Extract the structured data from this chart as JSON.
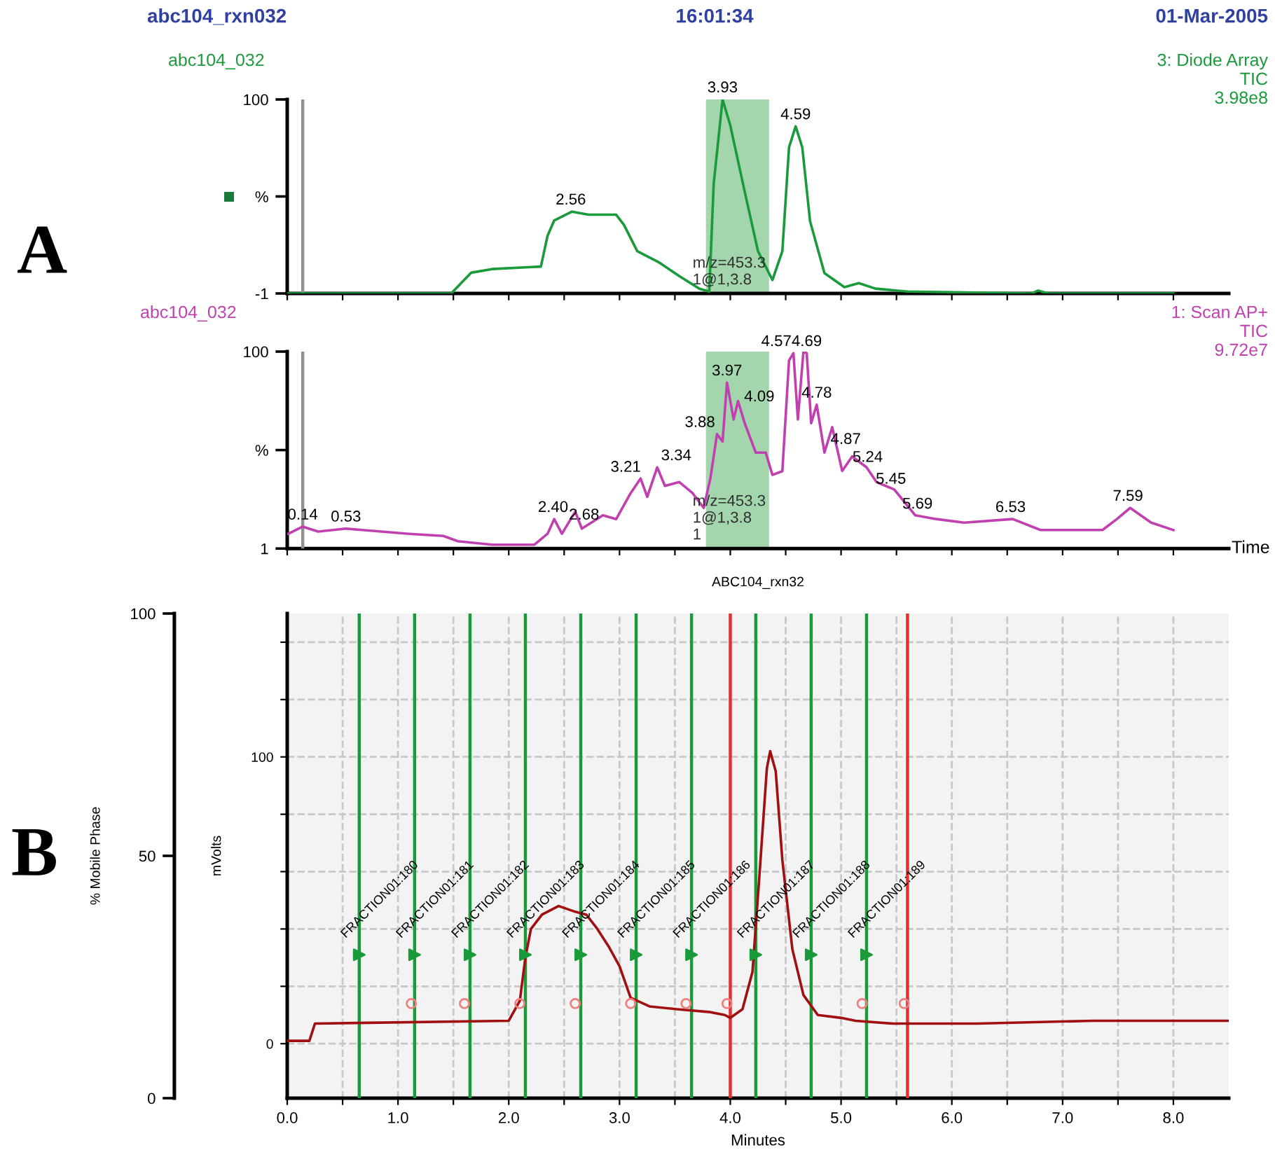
{
  "chart_data": [
    {
      "type": "line",
      "xlim": [
        0,
        8.5
      ],
      "ylim": [
        -1,
        100
      ],
      "tick_labels": "y",
      "xticks": [
        {
          "value": 0,
          "label": null
        },
        {
          "value": 0.5,
          "label": null
        },
        {
          "value": 1,
          "label": null
        },
        {
          "value": 1.5,
          "label": null
        },
        {
          "value": 2,
          "label": null
        },
        {
          "value": 2.5,
          "label": null
        },
        {
          "value": 3,
          "label": null
        },
        {
          "value": 3.5,
          "label": null
        },
        {
          "value": 4,
          "label": null
        },
        {
          "value": 4.5,
          "label": null
        },
        {
          "value": 5,
          "label": null
        },
        {
          "value": 5.5,
          "label": null
        },
        {
          "value": 6,
          "label": null
        },
        {
          "value": 6.5,
          "label": null
        },
        {
          "value": 7,
          "label": null
        },
        {
          "value": 7.5,
          "label": null
        },
        {
          "value": 8,
          "label": null
        }
      ],
      "yticks": [
        -1,
        {
          "value": 49.5,
          "label": "%"
        },
        100
      ],
      "series": [
        {
          "color": "#1a9a3a",
          "x": [
            0.01,
            1.48,
            1.66,
            1.85,
            2.29,
            2.35,
            2.41,
            2.57,
            2.72,
            2.97,
            3.04,
            3.16,
            3.35,
            3.54,
            3.72,
            3.81,
            3.85,
            3.93,
            4.0,
            4.13,
            4.25,
            4.38,
            4.47,
            4.53,
            4.59,
            4.65,
            4.72,
            4.85,
            5.03,
            5.16,
            5.31,
            5.6,
            6.72,
            6.78,
            6.87,
            8.0
          ],
          "values": [
            -1,
            -1,
            9.8,
            11.7,
            13,
            29,
            37,
            41.6,
            40,
            40,
            34.7,
            21,
            15.4,
            8,
            1.5,
            0,
            56,
            100,
            86.5,
            52,
            21,
            6,
            21,
            75,
            86,
            75,
            36.6,
            9.6,
            2.3,
            4.4,
            1.5,
            0,
            -1,
            0.5,
            -1,
            -1
          ]
        }
      ],
      "bands": [
        {
          "axis": "x",
          "from": 3.78,
          "to": 4.35,
          "color": "#7cc48a",
          "label": "m/z=453.3\n1@1,3.8"
        }
      ],
      "ref_lines": [
        {
          "axis": "x",
          "value": 0.14,
          "color": "#909090"
        }
      ],
      "annotations": [
        "A",
        "abc104_rxn032",
        "16:01:34",
        "01-Mar-2005",
        "abc104_032",
        "3: Diode Array\nTIC\n3.98e8",
        {
          "text": "2.56",
          "x": 2.56,
          "y": 41.6
        },
        {
          "text": "3.93",
          "x": 3.93,
          "y": 100
        },
        {
          "text": "4.59",
          "x": 4.59,
          "y": 86
        }
      ]
    },
    {
      "type": "line",
      "xlim": [
        0,
        8.5
      ],
      "ylim": [
        1,
        100
      ],
      "tick_labels": "y",
      "xlabel": "Time",
      "xticks": [
        {
          "value": 0,
          "label": null
        },
        {
          "value": 0.5,
          "label": null
        },
        {
          "value": 1,
          "label": null
        },
        {
          "value": 1.5,
          "label": null
        },
        {
          "value": 2,
          "label": null
        },
        {
          "value": 2.5,
          "label": null
        },
        {
          "value": 3,
          "label": null
        },
        {
          "value": 3.5,
          "label": null
        },
        {
          "value": 4,
          "label": null
        },
        {
          "value": 4.5,
          "label": null
        },
        {
          "value": 5,
          "label": null
        },
        {
          "value": 5.5,
          "label": null
        },
        {
          "value": 6,
          "label": null
        },
        {
          "value": 6.5,
          "label": null
        },
        {
          "value": 7,
          "label": null
        },
        {
          "value": 7.5,
          "label": null
        },
        {
          "value": 8,
          "label": null
        }
      ],
      "yticks": [
        1,
        {
          "value": 50.5,
          "label": "%"
        },
        100
      ],
      "series": [
        {
          "color": "#c040b0",
          "x": [
            0.01,
            0.14,
            0.28,
            0.53,
            1.1,
            1.41,
            1.54,
            1.85,
            2.23,
            2.35,
            2.41,
            2.48,
            2.6,
            2.66,
            2.85,
            2.97,
            3.1,
            3.19,
            3.25,
            3.34,
            3.41,
            3.54,
            3.66,
            3.76,
            3.82,
            3.88,
            3.93,
            3.97,
            4.03,
            4.07,
            4.13,
            4.23,
            4.32,
            4.38,
            4.47,
            4.53,
            4.57,
            4.61,
            4.66,
            4.69,
            4.73,
            4.78,
            4.85,
            4.92,
            5.01,
            5.1,
            5.23,
            5.32,
            5.48,
            5.67,
            5.86,
            6.11,
            6.55,
            6.8,
            7.36,
            7.49,
            7.61,
            7.8,
            8.0
          ],
          "values": [
            8.4,
            12,
            9.5,
            11,
            8.4,
            7.3,
            4.7,
            2.9,
            2.9,
            8.4,
            15.8,
            8.4,
            19.5,
            11,
            17.7,
            15.8,
            28.8,
            36.2,
            27,
            41.8,
            32.5,
            34.4,
            28.8,
            21.4,
            36.2,
            58.5,
            54.8,
            84.4,
            65.9,
            75.1,
            64,
            49.2,
            49.2,
            38,
            39.9,
            95.5,
            99.2,
            65.9,
            100,
            99.2,
            64,
            73.3,
            49.2,
            62,
            40,
            47.3,
            41.8,
            34.4,
            30.7,
            17.7,
            15.8,
            14,
            15.8,
            10.3,
            10.3,
            15.8,
            21.4,
            14,
            10.3
          ]
        }
      ],
      "bands": [
        {
          "axis": "x",
          "from": 3.78,
          "to": 4.35,
          "color": "#7cc48a",
          "label": "m/z=453.3\n1@1,3.8\n1"
        }
      ],
      "ref_lines": [
        {
          "axis": "x",
          "value": 0.14,
          "color": "#909090"
        }
      ],
      "annotations": [
        "abc104_032",
        "1: Scan AP+\nTIC\n9.72e7",
        {
          "text": "0.14",
          "x": 0.14,
          "y": 12
        },
        {
          "text": "0.53",
          "x": 0.53,
          "y": 11
        },
        {
          "text": "2.40",
          "x": 2.4,
          "y": 15.8
        },
        {
          "text": "2.68",
          "x": 2.68,
          "y": 12
        },
        {
          "text": "3.21",
          "x": 3.21,
          "y": 36
        },
        {
          "text": "3.34",
          "x": 3.34,
          "y": 41.8
        },
        {
          "text": "3.88",
          "x": 3.88,
          "y": 58.5
        },
        {
          "text": "3.97",
          "x": 3.97,
          "y": 84.4
        },
        {
          "text": "4.09",
          "x": 4.09,
          "y": 71.4
        },
        {
          "text": "4.57",
          "x": 4.57,
          "y": 99.2
        },
        {
          "text": "4.69",
          "x": 4.69,
          "y": 99.2
        },
        {
          "text": "4.78",
          "x": 4.78,
          "y": 73.3
        },
        {
          "text": "4.87",
          "x": 4.87,
          "y": 50
        },
        {
          "text": "5.24",
          "x": 5.24,
          "y": 41
        },
        {
          "text": "5.45",
          "x": 5.45,
          "y": 30
        },
        {
          "text": "5.69",
          "x": 5.69,
          "y": 17.5
        },
        {
          "text": "6.53",
          "x": 6.53,
          "y": 15.8
        },
        {
          "text": "7.59",
          "x": 7.59,
          "y": 21.4
        }
      ]
    },
    {
      "type": "line",
      "title": "ABC104_rxn32",
      "xlabel": "Minutes",
      "ylabel": "% Mobile Phase",
      "y2label": "mVolts",
      "grid": true,
      "xlim": [
        0,
        8.5
      ],
      "ylim": [
        0,
        100
      ],
      "y2lim": [
        -19,
        150
      ],
      "xticks": [
        {
          "value": 0,
          "label": "0.0"
        },
        {
          "value": 0.5,
          "label": null
        },
        {
          "value": 1,
          "label": "1.0"
        },
        {
          "value": 1.5,
          "label": null
        },
        {
          "value": 2,
          "label": "2.0"
        },
        {
          "value": 2.5,
          "label": null
        },
        {
          "value": 3,
          "label": "3.0"
        },
        {
          "value": 3.5,
          "label": null
        },
        {
          "value": 4,
          "label": "4.0"
        },
        {
          "value": 4.5,
          "label": null
        },
        {
          "value": 5,
          "label": "5.0"
        },
        {
          "value": 5.5,
          "label": null
        },
        {
          "value": 6,
          "label": "6.0"
        },
        {
          "value": 6.5,
          "label": null
        },
        {
          "value": 7,
          "label": "7.0"
        },
        {
          "value": 7.5,
          "label": null
        },
        {
          "value": 8,
          "label": "8.0"
        }
      ],
      "yticks": [
        0,
        50,
        100
      ],
      "y2ticks": [
        0,
        {
          "value": 20,
          "label": null
        },
        {
          "value": 40,
          "label": null
        },
        {
          "value": 60,
          "label": null
        },
        {
          "value": 80,
          "label": null
        },
        100,
        {
          "value": 120,
          "label": null
        },
        {
          "value": 140,
          "label": null
        }
      ],
      "series": [
        {
          "axis": "y2",
          "color": "#a01010",
          "x": [
            0,
            0.2,
            0.25,
            2.0,
            2.1,
            2.15,
            2.2,
            2.3,
            2.45,
            2.6,
            2.7,
            2.8,
            2.9,
            3.0,
            3.1,
            3.27,
            3.52,
            3.82,
            3.95,
            4.0,
            4.11,
            4.2,
            4.26,
            4.33,
            4.36,
            4.41,
            4.47,
            4.56,
            4.66,
            4.79,
            5.0,
            5.13,
            5.47,
            6.23,
            7.28,
            8.38,
            8.5
          ],
          "values": [
            1,
            1,
            7,
            8,
            15,
            30,
            40,
            45,
            48,
            46,
            45,
            40,
            34,
            27,
            16,
            13,
            12,
            11,
            10,
            9,
            12,
            25,
            57,
            96,
            102,
            95,
            64,
            33,
            17,
            10,
            9,
            8,
            7,
            7,
            8,
            8,
            8
          ]
        },
        {
          "axis": "y2",
          "type": "scatter",
          "marker": "triangle",
          "color": "#1a9a3a",
          "x": [
            0.65,
            1.15,
            1.65,
            2.15,
            2.65,
            3.15,
            3.65,
            4.23,
            4.73,
            5.23
          ],
          "values": [
            31,
            31,
            31,
            31,
            31,
            31,
            31,
            31,
            31,
            31
          ]
        },
        {
          "axis": "y2",
          "type": "scatter",
          "marker": "circle",
          "color": "#f08080",
          "x": [
            1.12,
            1.6,
            2.1,
            2.6,
            3.1,
            3.6,
            3.97,
            5.19,
            5.57
          ],
          "values": [
            14,
            14,
            14,
            14,
            14,
            14,
            14,
            14,
            14
          ]
        }
      ],
      "ref_lines": [
        {
          "axis": "x",
          "value": 0.65,
          "color": "#1a9a3a"
        },
        {
          "axis": "x",
          "value": 1.15,
          "color": "#1a9a3a"
        },
        {
          "axis": "x",
          "value": 1.65,
          "color": "#1a9a3a"
        },
        {
          "axis": "x",
          "value": 2.15,
          "color": "#1a9a3a"
        },
        {
          "axis": "x",
          "value": 2.65,
          "color": "#1a9a3a"
        },
        {
          "axis": "x",
          "value": 3.15,
          "color": "#1a9a3a"
        },
        {
          "axis": "x",
          "value": 3.65,
          "color": "#1a9a3a"
        },
        {
          "axis": "x",
          "value": 4.23,
          "color": "#1a9a3a"
        },
        {
          "axis": "x",
          "value": 4.73,
          "color": "#1a9a3a"
        },
        {
          "axis": "x",
          "value": 5.23,
          "color": "#1a9a3a"
        },
        {
          "axis": "x",
          "value": 4.0,
          "color": "#e03030"
        },
        {
          "axis": "x",
          "value": 5.6,
          "color": "#e03030"
        }
      ],
      "annotations": [
        "B",
        {
          "text": "FRACTION01:180",
          "x": 0.65,
          "y": 36
        },
        {
          "text": "FRACTION01:181",
          "x": 1.15,
          "y": 36
        },
        {
          "text": "FRACTION01:182",
          "x": 1.65,
          "y": 36
        },
        {
          "text": "FRACTION01:183",
          "x": 2.15,
          "y": 36
        },
        {
          "text": "FRACTION01:184",
          "x": 2.65,
          "y": 36
        },
        {
          "text": "FRACTION01:185",
          "x": 3.15,
          "y": 36
        },
        {
          "text": "FRACTION01:186",
          "x": 3.65,
          "y": 36
        },
        {
          "text": "FRACTION01:187",
          "x": 4.23,
          "y": 36
        },
        {
          "text": "FRACTION01:188",
          "x": 4.73,
          "y": 36
        },
        {
          "text": "FRACTION01:189",
          "x": 5.23,
          "y": 36
        }
      ]
    }
  ]
}
